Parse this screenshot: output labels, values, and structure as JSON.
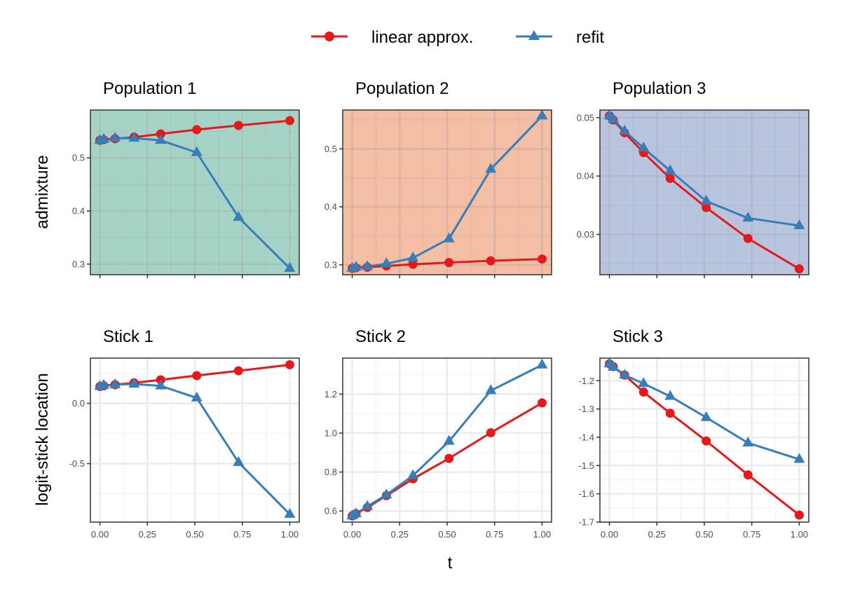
{
  "legend": {
    "position": "top",
    "entries": [
      {
        "label": "linear approx.",
        "color": "#e31a1c",
        "marker": "circle"
      },
      {
        "label": "refit",
        "color": "#377eb8",
        "marker": "triangle"
      }
    ]
  },
  "labels": {
    "ylabel_top": "admixture",
    "ylabel_bottom": "logit-stick location",
    "xlabel": "t"
  },
  "chart_data": [
    {
      "type": "line",
      "title": "Population 1",
      "background": "#a6d3c7",
      "grid": "light",
      "x": [
        0,
        0.02,
        0.08,
        0.18,
        0.32,
        0.51,
        0.73,
        1.0
      ],
      "xlim": [
        -0.05,
        1.05
      ],
      "ylim": [
        0.28,
        0.59
      ],
      "xticks": [
        0,
        0.25,
        0.5,
        0.75,
        1.0
      ],
      "xtick_labels": [
        "",
        "",
        "",
        "",
        ""
      ],
      "yticks": [
        0.3,
        0.4,
        0.5
      ],
      "ytick_labels": [
        "0.3",
        "0.4",
        "0.5"
      ],
      "series": [
        {
          "name": "linear approx.",
          "values": [
            0.533,
            0.534,
            0.536,
            0.539,
            0.545,
            0.553,
            0.561,
            0.57
          ]
        },
        {
          "name": "refit",
          "values": [
            0.533,
            0.535,
            0.537,
            0.537,
            0.533,
            0.51,
            0.388,
            0.292
          ]
        }
      ]
    },
    {
      "type": "line",
      "title": "Population 2",
      "background": "#f4bea5",
      "grid": "light",
      "x": [
        0,
        0.02,
        0.08,
        0.18,
        0.32,
        0.51,
        0.73,
        1.0
      ],
      "xlim": [
        -0.05,
        1.05
      ],
      "ylim": [
        0.283,
        0.567
      ],
      "xticks": [
        0,
        0.25,
        0.5,
        0.75,
        1.0
      ],
      "xtick_labels": [
        "",
        "",
        "",
        "",
        ""
      ],
      "yticks": [
        0.3,
        0.4,
        0.5
      ],
      "ytick_labels": [
        "0.3",
        "0.4",
        "0.5"
      ],
      "series": [
        {
          "name": "linear approx.",
          "values": [
            0.294,
            0.295,
            0.296,
            0.298,
            0.301,
            0.304,
            0.307,
            0.31
          ]
        },
        {
          "name": "refit",
          "values": [
            0.294,
            0.296,
            0.297,
            0.302,
            0.312,
            0.345,
            0.465,
            0.557
          ]
        }
      ]
    },
    {
      "type": "line",
      "title": "Population 3",
      "background": "#b9c5df",
      "grid": "light",
      "x": [
        0,
        0.02,
        0.08,
        0.18,
        0.32,
        0.51,
        0.73,
        1.0
      ],
      "xlim": [
        -0.05,
        1.05
      ],
      "ylim": [
        0.0231,
        0.0513
      ],
      "xticks": [
        0,
        0.25,
        0.5,
        0.75,
        1.0
      ],
      "xtick_labels": [
        "",
        "",
        "",
        "",
        ""
      ],
      "yticks": [
        0.03,
        0.04,
        0.05
      ],
      "ytick_labels": [
        "0.03",
        "0.04",
        "0.05"
      ],
      "series": [
        {
          "name": "linear approx.",
          "values": [
            0.0503,
            0.0496,
            0.0474,
            0.044,
            0.0396,
            0.0346,
            0.0293,
            0.0241
          ]
        },
        {
          "name": "refit",
          "values": [
            0.0503,
            0.0497,
            0.0477,
            0.0448,
            0.0409,
            0.0357,
            0.0328,
            0.0315
          ]
        }
      ]
    },
    {
      "type": "line",
      "title": "Stick 1",
      "background": "#ffffff",
      "grid": "light",
      "x": [
        0,
        0.02,
        0.08,
        0.18,
        0.32,
        0.51,
        0.73,
        1.0
      ],
      "xlim": [
        -0.05,
        1.05
      ],
      "ylim": [
        -0.985,
        0.375
      ],
      "xticks": [
        0,
        0.25,
        0.5,
        0.75,
        1.0
      ],
      "xtick_labels": [
        "0.00",
        "0.25",
        "0.50",
        "0.75",
        "1.00"
      ],
      "yticks": [
        -0.5,
        0.0
      ],
      "ytick_labels": [
        "-0.5",
        "0.0"
      ],
      "series": [
        {
          "name": "linear approx.",
          "values": [
            0.14,
            0.145,
            0.155,
            0.17,
            0.195,
            0.23,
            0.27,
            0.32
          ]
        },
        {
          "name": "refit",
          "values": [
            0.14,
            0.15,
            0.155,
            0.16,
            0.145,
            0.045,
            -0.49,
            -0.92
          ]
        }
      ]
    },
    {
      "type": "line",
      "title": "Stick 2",
      "background": "#ffffff",
      "grid": "light",
      "x": [
        0,
        0.02,
        0.08,
        0.18,
        0.32,
        0.51,
        0.73,
        1.0
      ],
      "xlim": [
        -0.05,
        1.05
      ],
      "ylim": [
        0.543,
        1.385
      ],
      "xticks": [
        0,
        0.25,
        0.5,
        0.75,
        1.0
      ],
      "xtick_labels": [
        "0.00",
        "0.25",
        "0.50",
        "0.75",
        "1.00"
      ],
      "yticks": [
        0.6,
        0.8,
        1.0,
        1.2
      ],
      "ytick_labels": [
        "0.6",
        "0.8",
        "1.0",
        "1.2"
      ],
      "series": [
        {
          "name": "linear approx.",
          "values": [
            0.575,
            0.586,
            0.618,
            0.679,
            0.765,
            0.87,
            1.002,
            1.155
          ]
        },
        {
          "name": "refit",
          "values": [
            0.575,
            0.586,
            0.624,
            0.683,
            0.782,
            0.958,
            1.218,
            1.35
          ]
        }
      ]
    },
    {
      "type": "line",
      "title": "Stick 3",
      "background": "#ffffff",
      "grid": "light",
      "x": [
        0,
        0.02,
        0.08,
        0.18,
        0.32,
        0.51,
        0.73,
        1.0
      ],
      "xlim": [
        -0.05,
        1.05
      ],
      "ylim": [
        -1.7,
        -1.12
      ],
      "xticks": [
        0,
        0.25,
        0.5,
        0.75,
        1.0
      ],
      "xtick_labels": [
        "0.00",
        "0.25",
        "0.50",
        "0.75",
        "1.00"
      ],
      "yticks": [
        -1.7,
        -1.6,
        -1.5,
        -1.4,
        -1.3,
        -1.2
      ],
      "ytick_labels": [
        "-1.7",
        "-1.6",
        "-1.5",
        "-1.4",
        "-1.3",
        "-1.2"
      ],
      "series": [
        {
          "name": "linear approx.",
          "values": [
            -1.14,
            -1.15,
            -1.18,
            -1.24,
            -1.315,
            -1.413,
            -1.533,
            -1.675
          ]
        },
        {
          "name": "refit",
          "values": [
            -1.14,
            -1.152,
            -1.18,
            -1.21,
            -1.255,
            -1.33,
            -1.42,
            -1.478
          ]
        }
      ]
    }
  ]
}
